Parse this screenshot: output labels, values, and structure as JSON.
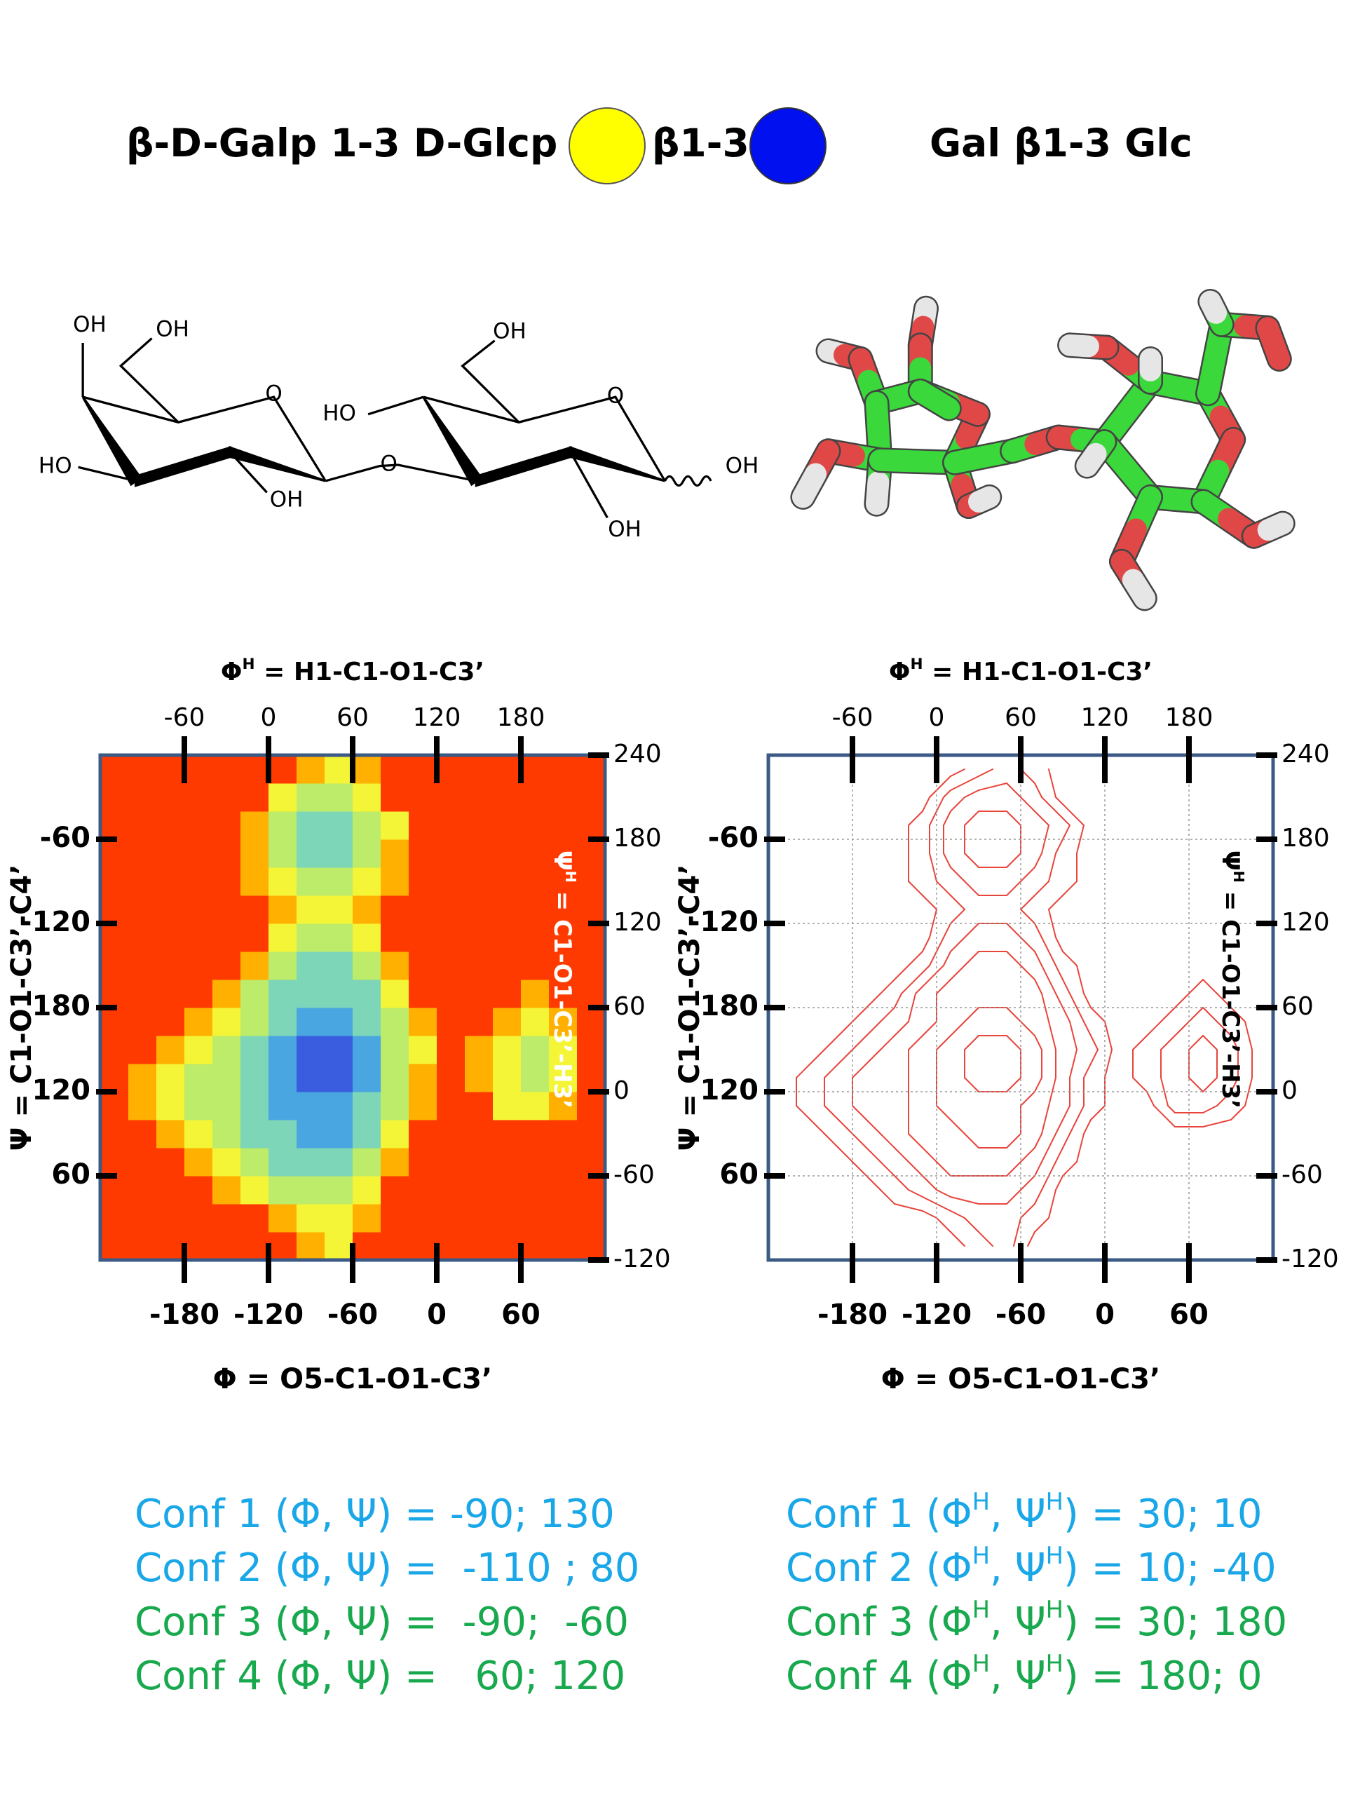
{
  "header": {
    "left": "β-D-Galp 1-3 D-Glcp",
    "linkage": "β1-3",
    "right": "Gal β1-3 Glc",
    "left_color": "#ffff00",
    "right_color": "#0010ee"
  },
  "structure": {
    "labels": [
      "OH",
      "OH",
      "O",
      "HO",
      "OH",
      "O",
      "HO",
      "OH",
      "O",
      "OH",
      "OH"
    ]
  },
  "chart_data": [
    {
      "type": "heatmap",
      "xlabel": "Φ = O5-C1-O1-C3’",
      "x2label": [
        "Φ",
        "H",
        " = H1-C1-O1-C3’"
      ],
      "ylabel": "Ψ = C1-O1-C3’-C4’",
      "y2label": [
        "Ψ",
        "H",
        " = C1-O1-C3’-H3’"
      ],
      "xlim": [
        -240,
        120
      ],
      "xticks": [
        -180,
        -120,
        -60,
        0,
        60
      ],
      "x2lim": [
        -120,
        240
      ],
      "x2ticks": [
        -60,
        0,
        60,
        120,
        180
      ],
      "ylim": [
        0,
        360
      ],
      "yticks": [
        60,
        120,
        180,
        {
          "value": 240,
          "label": "-120"
        },
        {
          "value": 300,
          "label": "-60"
        }
      ],
      "y2lim": [
        -120,
        240
      ],
      "y2ticks": [
        -120,
        -60,
        0,
        60,
        120,
        180,
        240
      ],
      "grid": false,
      "colors": [
        "#3a5de0",
        "#4aa6e0",
        "#7dd6b8",
        "#bdeb6a",
        "#f4f536",
        "#ffb000",
        "#ff3a00"
      ],
      "x": [
        -230,
        -210,
        -190,
        -170,
        -150,
        -130,
        -110,
        -90,
        -70,
        -50,
        -30,
        -10,
        10,
        30,
        50,
        70,
        90,
        110
      ],
      "y": [
        10,
        30,
        50,
        70,
        90,
        110,
        130,
        150,
        170,
        190,
        210,
        230,
        250,
        270,
        290,
        310,
        330,
        350
      ],
      "z": [
        [
          6,
          6,
          6,
          6,
          6,
          6,
          6,
          5,
          4,
          6,
          6,
          6,
          6,
          6,
          6,
          6,
          6,
          6
        ],
        [
          6,
          6,
          6,
          6,
          6,
          6,
          5,
          4,
          4,
          5,
          6,
          6,
          6,
          6,
          6,
          6,
          6,
          6
        ],
        [
          6,
          6,
          6,
          6,
          5,
          4,
          3,
          3,
          3,
          4,
          6,
          6,
          6,
          6,
          6,
          6,
          6,
          6
        ],
        [
          6,
          6,
          6,
          5,
          4,
          3,
          2,
          2,
          2,
          3,
          5,
          6,
          6,
          6,
          6,
          6,
          6,
          6
        ],
        [
          6,
          6,
          5,
          4,
          3,
          2,
          2,
          1,
          1,
          2,
          4,
          6,
          6,
          6,
          6,
          6,
          6,
          6
        ],
        [
          6,
          5,
          4,
          3,
          3,
          2,
          1,
          1,
          1,
          2,
          3,
          5,
          6,
          6,
          4,
          4,
          5,
          6
        ],
        [
          6,
          5,
          4,
          3,
          3,
          2,
          1,
          0,
          0,
          1,
          3,
          5,
          6,
          5,
          4,
          3,
          4,
          6
        ],
        [
          6,
          6,
          5,
          4,
          3,
          2,
          1,
          0,
          0,
          1,
          3,
          4,
          6,
          5,
          4,
          3,
          4,
          6
        ],
        [
          6,
          6,
          6,
          5,
          4,
          3,
          2,
          1,
          1,
          2,
          3,
          5,
          6,
          6,
          5,
          4,
          5,
          6
        ],
        [
          6,
          6,
          6,
          6,
          5,
          3,
          2,
          2,
          2,
          2,
          4,
          6,
          6,
          6,
          6,
          5,
          6,
          6
        ],
        [
          6,
          6,
          6,
          6,
          6,
          5,
          3,
          2,
          2,
          3,
          5,
          6,
          6,
          6,
          6,
          6,
          6,
          6
        ],
        [
          6,
          6,
          6,
          6,
          6,
          6,
          4,
          3,
          3,
          4,
          6,
          6,
          6,
          6,
          6,
          6,
          6,
          6
        ],
        [
          6,
          6,
          6,
          6,
          6,
          6,
          5,
          4,
          4,
          5,
          6,
          6,
          6,
          6,
          6,
          6,
          6,
          6
        ],
        [
          6,
          6,
          6,
          6,
          6,
          5,
          4,
          3,
          3,
          4,
          5,
          6,
          6,
          6,
          6,
          6,
          6,
          6
        ],
        [
          6,
          6,
          6,
          6,
          6,
          5,
          3,
          2,
          2,
          3,
          5,
          6,
          6,
          6,
          6,
          6,
          6,
          6
        ],
        [
          6,
          6,
          6,
          6,
          6,
          5,
          3,
          2,
          2,
          3,
          4,
          6,
          6,
          6,
          6,
          6,
          6,
          6
        ],
        [
          6,
          6,
          6,
          6,
          6,
          6,
          4,
          3,
          3,
          4,
          6,
          6,
          6,
          6,
          6,
          6,
          6,
          6
        ],
        [
          6,
          6,
          6,
          6,
          6,
          6,
          6,
          5,
          4,
          5,
          6,
          6,
          6,
          6,
          6,
          6,
          6,
          6
        ]
      ]
    },
    {
      "type": "contour",
      "xlabel": "Φ = O5-C1-O1-C3’",
      "x2label": [
        "Φ",
        "H",
        " = H1-C1-O1-C3’"
      ],
      "ylabel": "Ψ = C1-O1-C3’-C4’",
      "y2label": [
        "Ψ",
        "H",
        " = C1-O1-C3’-H3’"
      ],
      "xlim": [
        -240,
        120
      ],
      "xticks": [
        -180,
        -120,
        -60,
        0,
        60
      ],
      "x2lim": [
        -120,
        240
      ],
      "x2ticks": [
        -60,
        0,
        60,
        120,
        180
      ],
      "ylim": [
        0,
        360
      ],
      "yticks": [
        60,
        120,
        180,
        {
          "value": 240,
          "label": "-120"
        },
        {
          "value": 300,
          "label": "-60"
        }
      ],
      "y2lim": [
        -120,
        240
      ],
      "y2ticks": [
        -120,
        -60,
        0,
        60,
        120,
        180,
        240
      ],
      "grid": true,
      "color": "#e8453c",
      "levels": [
        0.5,
        1.5,
        2.5,
        3.5,
        4.5,
        5.5
      ],
      "x": [
        -230,
        -210,
        -190,
        -170,
        -150,
        -130,
        -110,
        -90,
        -70,
        -50,
        -30,
        -10,
        10,
        30,
        50,
        70,
        90,
        110
      ],
      "y": [
        10,
        30,
        50,
        70,
        90,
        110,
        130,
        150,
        170,
        190,
        210,
        230,
        250,
        270,
        290,
        310,
        330,
        350
      ],
      "z": [
        [
          6,
          6,
          6,
          6,
          6,
          6,
          6,
          5,
          4,
          6,
          6,
          6,
          6,
          6,
          6,
          6,
          6,
          6
        ],
        [
          6,
          6,
          6,
          6,
          6,
          6,
          5,
          4,
          4,
          5,
          6,
          6,
          6,
          6,
          6,
          6,
          6,
          6
        ],
        [
          6,
          6,
          6,
          6,
          5,
          4,
          3,
          3,
          3,
          4,
          6,
          6,
          6,
          6,
          6,
          6,
          6,
          6
        ],
        [
          6,
          6,
          6,
          5,
          4,
          3,
          2,
          2,
          2,
          3,
          5,
          6,
          6,
          6,
          6,
          6,
          6,
          6
        ],
        [
          6,
          6,
          5,
          4,
          3,
          2,
          2,
          1,
          1,
          2,
          4,
          6,
          6,
          6,
          6,
          6,
          6,
          6
        ],
        [
          6,
          5,
          4,
          3,
          3,
          2,
          1,
          1,
          1,
          2,
          3,
          5,
          6,
          6,
          4,
          4,
          5,
          6
        ],
        [
          6,
          5,
          4,
          3,
          3,
          2,
          1,
          0,
          0,
          1,
          3,
          5,
          6,
          5,
          4,
          3,
          4,
          6
        ],
        [
          6,
          6,
          5,
          4,
          3,
          2,
          1,
          0,
          0,
          1,
          3,
          4,
          6,
          5,
          4,
          3,
          4,
          6
        ],
        [
          6,
          6,
          6,
          5,
          4,
          3,
          2,
          1,
          1,
          2,
          3,
          5,
          6,
          6,
          5,
          4,
          5,
          6
        ],
        [
          6,
          6,
          6,
          6,
          5,
          3,
          2,
          2,
          2,
          2,
          4,
          6,
          6,
          6,
          6,
          5,
          6,
          6
        ],
        [
          6,
          6,
          6,
          6,
          6,
          5,
          3,
          2,
          2,
          3,
          5,
          6,
          6,
          6,
          6,
          6,
          6,
          6
        ],
        [
          6,
          6,
          6,
          6,
          6,
          6,
          4,
          3,
          3,
          4,
          6,
          6,
          6,
          6,
          6,
          6,
          6,
          6
        ],
        [
          6,
          6,
          6,
          6,
          6,
          6,
          5,
          4,
          4,
          5,
          6,
          6,
          6,
          6,
          6,
          6,
          6,
          6
        ],
        [
          6,
          6,
          6,
          6,
          6,
          5,
          4,
          3,
          3,
          4,
          5,
          6,
          6,
          6,
          6,
          6,
          6,
          6
        ],
        [
          6,
          6,
          6,
          6,
          6,
          5,
          3,
          2,
          2,
          3,
          5,
          6,
          6,
          6,
          6,
          6,
          6,
          6
        ],
        [
          6,
          6,
          6,
          6,
          6,
          5,
          3,
          2,
          2,
          3,
          4,
          6,
          6,
          6,
          6,
          6,
          6,
          6
        ],
        [
          6,
          6,
          6,
          6,
          6,
          6,
          4,
          3,
          3,
          4,
          6,
          6,
          6,
          6,
          6,
          6,
          6,
          6
        ],
        [
          6,
          6,
          6,
          6,
          6,
          6,
          6,
          5,
          4,
          5,
          6,
          6,
          6,
          6,
          6,
          6,
          6,
          6
        ]
      ]
    }
  ],
  "conformations": {
    "colors": [
      "#1aa7e8",
      "#1aa7e8",
      "#18a94e",
      "#18a94e"
    ],
    "left": [
      "Conf 1 (Φ, Ψ) = -90; 130",
      "Conf 2 (Φ, Ψ) =  -110 ; 80",
      "Conf 3 (Φ, Ψ) =  -90;  -60",
      "Conf 4 (Φ, Ψ) =   60; 120"
    ],
    "right": [
      [
        "Conf 1 (Φ",
        "H",
        ", Ψ",
        "H",
        ") = 30; 10"
      ],
      [
        "Conf 2 (Φ",
        "H",
        ", Ψ",
        "H",
        ") = 10; -40"
      ],
      [
        "Conf 3 (Φ",
        "H",
        ", Ψ",
        "H",
        ") = 30; 180"
      ],
      [
        "Conf 4 (Φ",
        "H",
        ", Ψ",
        "H",
        ") = 180; 0"
      ]
    ]
  }
}
